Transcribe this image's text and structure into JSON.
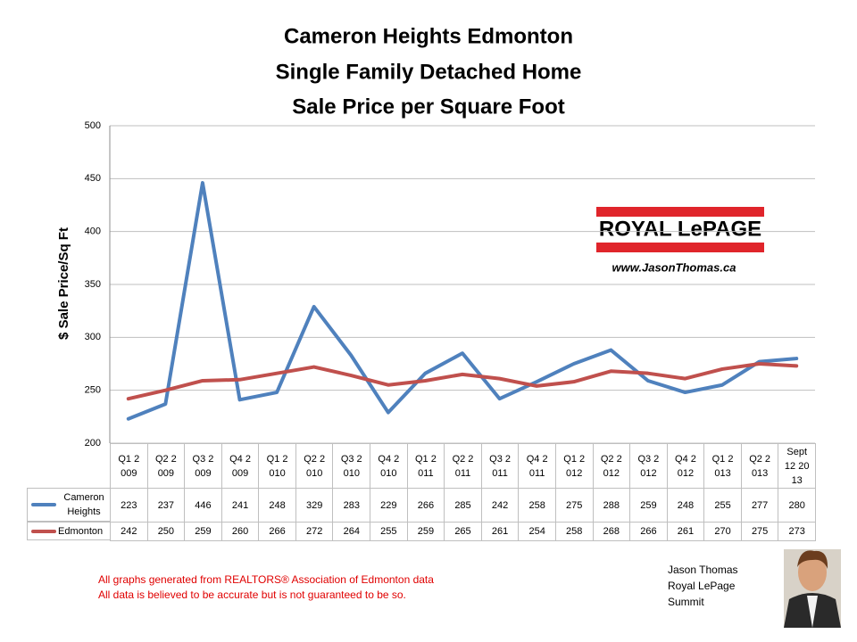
{
  "chart_data": {
    "type": "line",
    "title": [
      "Cameron Heights Edmonton",
      "Single Family Detached Home",
      "Sale Price per Square Foot"
    ],
    "y_label": "$ Sale Price/Sq Ft",
    "categories": [
      "Q1 2009",
      "Q2 2009",
      "Q3 2009",
      "Q4 2009",
      "Q1 2010",
      "Q2 2010",
      "Q3 2010",
      "Q4 2010",
      "Q1 2011",
      "Q2 2011",
      "Q3 2011",
      "Q4 2011",
      "Q1 2012",
      "Q2 2012",
      "Q3 2012",
      "Q4 2012",
      "Q1 2013",
      "Q2 2013",
      "Sept12 2013"
    ],
    "series": [
      {
        "name": "Cameron Heights",
        "color": "#4f81bd",
        "values": [
          223,
          237,
          446,
          241,
          248,
          329,
          283,
          229,
          266,
          285,
          242,
          258,
          275,
          288,
          259,
          248,
          255,
          277,
          280
        ]
      },
      {
        "name": "Edmonton",
        "color": "#c0504d",
        "values": [
          242,
          250,
          259,
          260,
          266,
          272,
          264,
          255,
          259,
          265,
          261,
          254,
          258,
          268,
          266,
          261,
          270,
          275,
          273
        ]
      }
    ],
    "ylim": [
      200,
      500
    ],
    "yticks": [
      200,
      250,
      300,
      350,
      400,
      450,
      500
    ],
    "grid": true
  },
  "logo": {
    "brand": "ROYAL LePAGE",
    "url": "www.JasonThomas.ca"
  },
  "footnotes": [
    "All graphs generated from REALTORS® Association of Edmonton data",
    "All data is believed to be accurate but is not guaranteed to be so."
  ],
  "agent": [
    "Jason Thomas",
    "Royal LePage",
    "Summit"
  ]
}
